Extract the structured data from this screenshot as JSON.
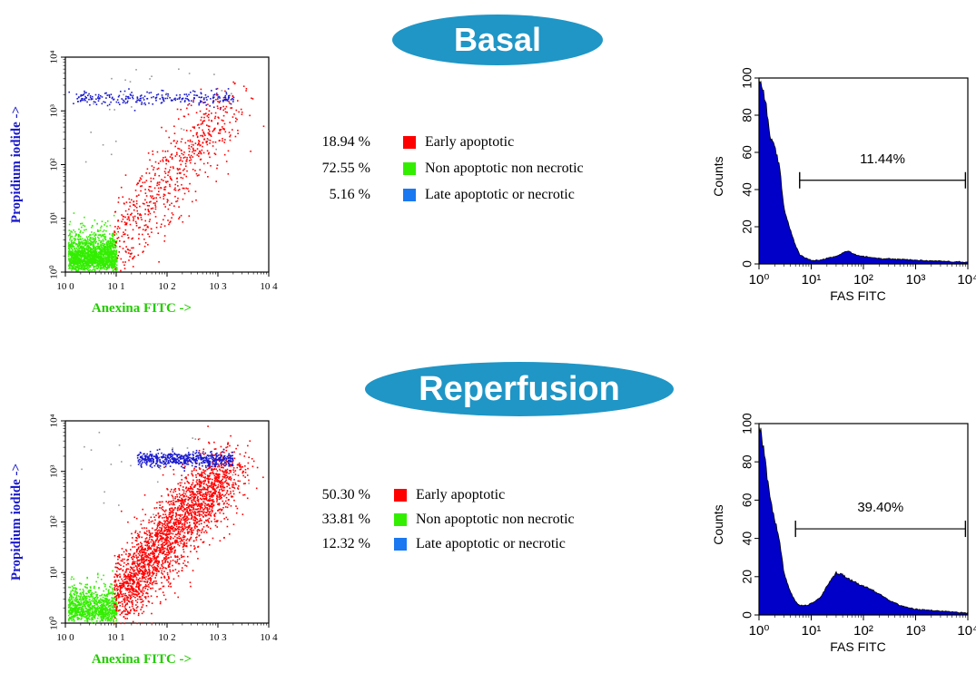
{
  "colors": {
    "pill": "#1f96c6",
    "early": "#ff0000",
    "non": "#33ee00",
    "late": "#1a78f0",
    "blue_dots": "#1a1acc",
    "hist_fill": "#0000c8",
    "green_label": "#22cc00",
    "blue_label": "#1a1acc"
  },
  "panels": [
    {
      "title": "Basal",
      "scatter": {
        "ylabel": "Propidium iodide ->",
        "xlabel": "Anexina FITC ->",
        "x_ticks": [
          "10 0",
          "10 1",
          "10 2",
          "10 3",
          "10 4"
        ],
        "y_ticks": [
          "10⁰",
          "10¹",
          "10²",
          "10³",
          "10⁴"
        ]
      },
      "legend": [
        {
          "pct": "18.94 %",
          "label": "Early apoptotic",
          "color": "#ff0000"
        },
        {
          "pct": "72.55 %",
          "label": "Non apoptotic non necrotic",
          "color": "#33ee00"
        },
        {
          "pct": "5.16 %",
          "label": "Late apoptotic or necrotic",
          "color": "#1a78f0"
        }
      ],
      "histogram": {
        "ylabel": "Counts",
        "xlabel": "FAS FITC",
        "y_ticks": [
          "0",
          "20",
          "40",
          "60",
          "80",
          "100"
        ],
        "x_ticks": [
          "10⁰",
          "10¹",
          "10²",
          "10³",
          "10⁴"
        ],
        "marker_label": "11.44%"
      }
    },
    {
      "title": "Reperfusion",
      "scatter": {
        "ylabel": "Propidium iodide ->",
        "xlabel": "Anexina FITC ->",
        "x_ticks": [
          "10 0",
          "10 1",
          "10 2",
          "10 3",
          "10 4"
        ],
        "y_ticks": [
          "10⁰",
          "10¹",
          "10²",
          "10³",
          "10⁴"
        ]
      },
      "legend": [
        {
          "pct": "50.30 %",
          "label": "Early apoptotic",
          "color": "#ff0000"
        },
        {
          "pct": "33.81 %",
          "label": "Non apoptotic non necrotic",
          "color": "#33ee00"
        },
        {
          "pct": "12.32 %",
          "label": "Late apoptotic or necrotic",
          "color": "#1a78f0"
        }
      ],
      "histogram": {
        "ylabel": "Counts",
        "xlabel": "FAS FITC",
        "y_ticks": [
          "0",
          "20",
          "40",
          "60",
          "80",
          "100"
        ],
        "x_ticks": [
          "10⁰",
          "10¹",
          "10²",
          "10³",
          "10⁴"
        ],
        "marker_label": "39.40%"
      }
    }
  ],
  "chart_data": [
    {
      "type": "scatter",
      "title": "",
      "xlabel": "Anexina FITC ->",
      "ylabel": "Propidium iodide ->",
      "xscale": "log",
      "yscale": "log",
      "xlim": [
        1,
        10000
      ],
      "ylim": [
        1,
        10000
      ],
      "series": [
        {
          "name": "Early apoptotic",
          "percent": 18.94,
          "center_x": 80,
          "center_y": 60
        },
        {
          "name": "Non apoptotic non necrotic",
          "percent": 72.55,
          "center_x": 3,
          "center_y": 2
        },
        {
          "name": "Late apoptotic or necrotic",
          "percent": 5.16,
          "center_x": 150,
          "center_y": 1800
        }
      ]
    },
    {
      "type": "area",
      "title": "",
      "xlabel": "FAS FITC",
      "ylabel": "Counts",
      "xscale": "log",
      "xlim": [
        1,
        10000
      ],
      "ylim": [
        0,
        100
      ],
      "x": [
        1,
        1.1,
        1.3,
        1.6,
        2,
        2.5,
        3,
        4,
        5,
        6,
        8,
        10,
        15,
        20,
        30,
        40,
        50,
        70,
        100,
        200,
        500,
        1000,
        3000,
        10000
      ],
      "values": [
        100,
        97,
        90,
        70,
        62,
        52,
        30,
        18,
        10,
        5,
        3,
        2,
        2,
        3,
        4,
        6,
        7,
        5,
        4,
        3,
        2.5,
        2,
        1.5,
        1
      ],
      "marker": {
        "label": "11.44%",
        "x_range": [
          6,
          9000
        ],
        "y": 45
      }
    },
    {
      "type": "scatter",
      "title": "",
      "xlabel": "Anexina FITC ->",
      "ylabel": "Propidium iodide ->",
      "xscale": "log",
      "yscale": "log",
      "xlim": [
        1,
        10000
      ],
      "ylim": [
        1,
        10000
      ],
      "series": [
        {
          "name": "Early apoptotic",
          "percent": 50.3,
          "center_x": 90,
          "center_y": 80
        },
        {
          "name": "Non apoptotic non necrotic",
          "percent": 33.81,
          "center_x": 3,
          "center_y": 2
        },
        {
          "name": "Late apoptotic or necrotic",
          "percent": 12.32,
          "center_x": 300,
          "center_y": 1800
        }
      ]
    },
    {
      "type": "area",
      "title": "",
      "xlabel": "FAS FITC",
      "ylabel": "Counts",
      "xscale": "log",
      "xlim": [
        1,
        10000
      ],
      "ylim": [
        0,
        100
      ],
      "x": [
        1,
        1.1,
        1.3,
        1.6,
        2,
        2.5,
        3,
        4,
        5,
        6,
        8,
        10,
        15,
        20,
        30,
        40,
        50,
        70,
        100,
        150,
        200,
        300,
        500,
        1000,
        3000,
        10000
      ],
      "values": [
        100,
        95,
        82,
        62,
        50,
        38,
        22,
        12,
        7,
        5,
        5,
        6,
        9,
        15,
        22,
        21,
        19,
        17,
        15,
        13,
        11,
        8,
        5,
        3,
        2,
        1
      ],
      "marker": {
        "label": "39.40%",
        "x_range": [
          5,
          9000
        ],
        "y": 45
      }
    }
  ]
}
